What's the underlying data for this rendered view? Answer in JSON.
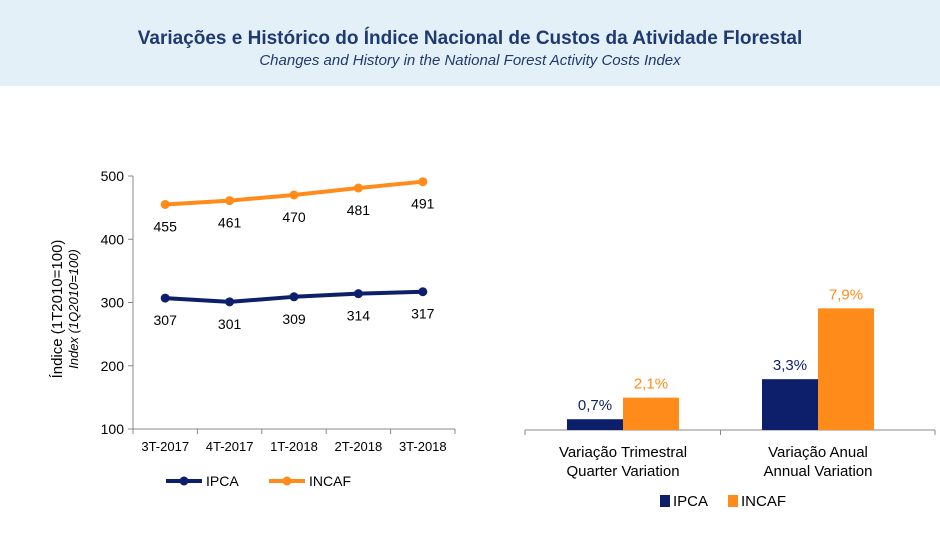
{
  "header": {
    "title": "Variações e Histórico do Índice Nacional de Custos da Atividade Florestal",
    "subtitle": "Changes and History in the National Forest Activity Costs Index"
  },
  "colors": {
    "ipca": "#0d1f6b",
    "incaf": "#ff8c1a",
    "header_bg": "#e4f0f8",
    "title": "#1f3a70"
  },
  "chart_data": [
    {
      "type": "line",
      "ylabel": "Índice (1T2010=100)",
      "ylabel_sub": "Index (1Q2010=100)",
      "categories": [
        "3T-2017",
        "4T-2017",
        "1T-2018",
        "2T-2018",
        "3T-2018"
      ],
      "ylim": [
        100,
        500
      ],
      "yticks": [
        "100",
        "200",
        "300",
        "400",
        "500"
      ],
      "grid": false,
      "legend": "bottom",
      "series": [
        {
          "name": "IPCA",
          "values": [
            307,
            301,
            309,
            314,
            317
          ],
          "labels": [
            "307",
            "301",
            "309",
            "314",
            "317"
          ]
        },
        {
          "name": "INCAF",
          "values": [
            455,
            461,
            470,
            481,
            491
          ],
          "labels": [
            "455",
            "461",
            "470",
            "481",
            "491"
          ]
        }
      ]
    },
    {
      "type": "bar",
      "categories": [
        {
          "line1": "Variação Trimestral",
          "line2": "Quarter Variation"
        },
        {
          "line1": "Variação Anual",
          "line2": "Annual Variation"
        }
      ],
      "ylim": [
        0,
        8.5
      ],
      "legend": "bottom",
      "series": [
        {
          "name": "IPCA",
          "values": [
            0.7,
            3.3
          ],
          "labels": [
            "0,7%",
            "3,3%"
          ]
        },
        {
          "name": "INCAF",
          "values": [
            2.1,
            7.9
          ],
          "labels": [
            "2,1%",
            "7,9%"
          ]
        }
      ]
    }
  ]
}
